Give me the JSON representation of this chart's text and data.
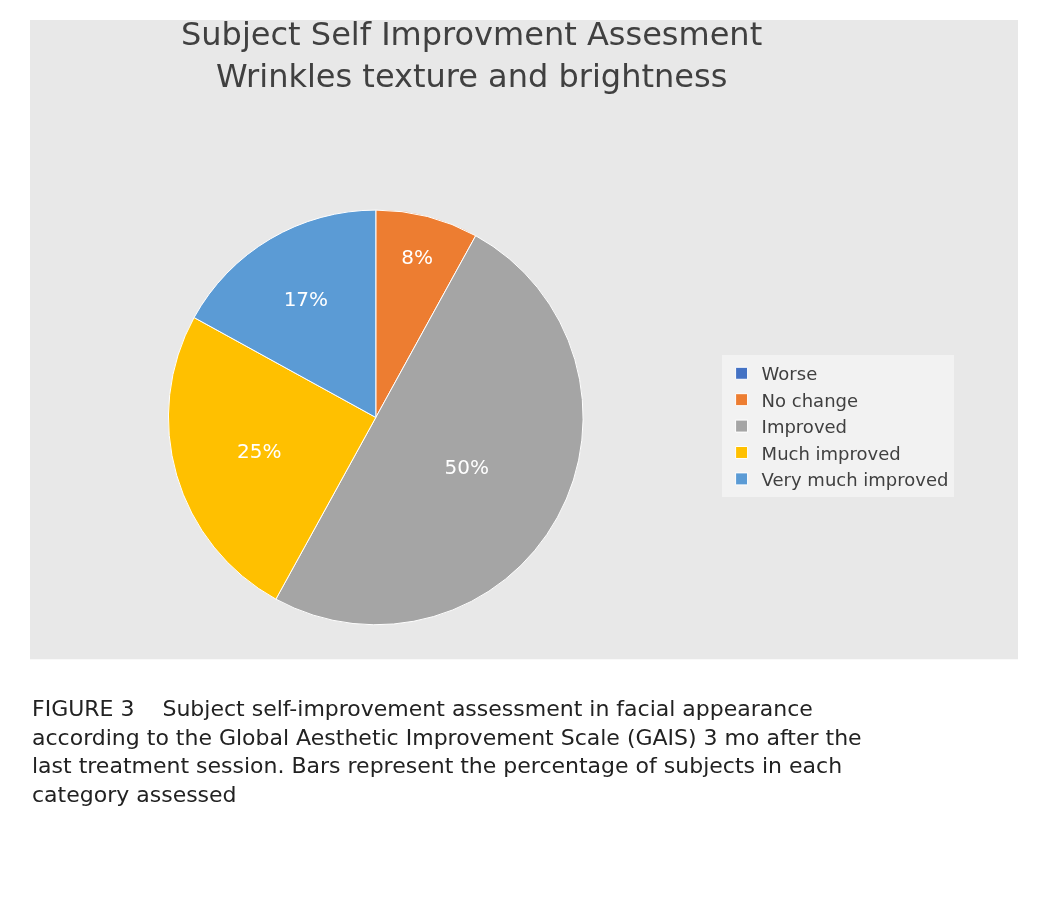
{
  "chart_data": {
    "type": "pie",
    "title": "Subject Self Improvment Assesment\nWrinkles texture and brightness",
    "categories": [
      "Worse",
      "No change",
      "Improved",
      "Much improved",
      "Very much improved"
    ],
    "values": [
      0,
      8,
      50,
      25,
      17
    ],
    "value_labels": [
      null,
      "8%",
      "50%",
      "25%",
      "17%"
    ],
    "colors": [
      "#4472c4",
      "#ed7d31",
      "#a5a5a5",
      "#ffc000",
      "#5b9bd5"
    ],
    "legend": "right",
    "annotations": [
      "FIGURE 3    Subject self-improvement assessment in facial appearance according to the Global Aesthetic Improvement Scale (GAIS) 3 mo after the last treatment session. Bars represent the percentage of subjects in each category assessed"
    ]
  }
}
